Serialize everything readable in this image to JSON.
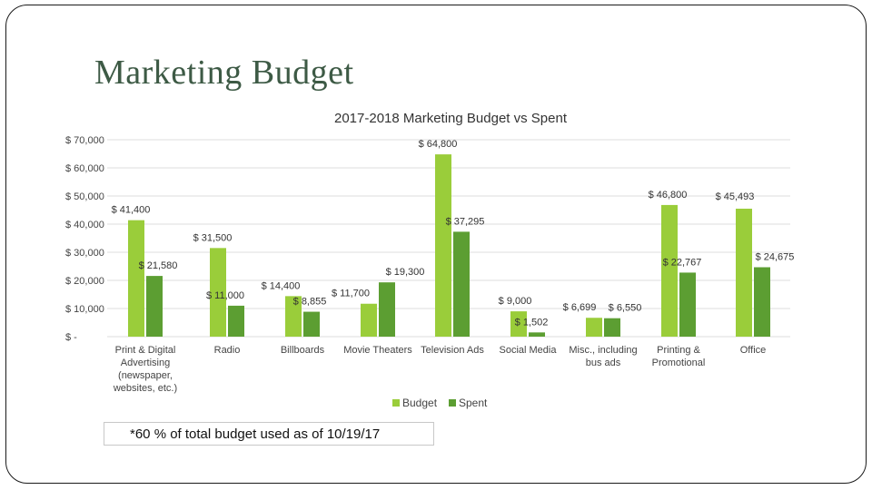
{
  "slide": {
    "title": "Marketing Budget",
    "footnote": "*60 % of total budget used as of 10/19/17"
  },
  "colors": {
    "budget": "#9acd3a",
    "spent": "#5c9e32",
    "grid": "#dcdcdc",
    "text": "#444444"
  },
  "chart_data": {
    "type": "bar",
    "title": "2017-2018 Marketing Budget vs Spent",
    "xlabel": "",
    "ylabel": "",
    "ylim": [
      0,
      70000
    ],
    "yticks": [
      0,
      10000,
      20000,
      30000,
      40000,
      50000,
      60000,
      70000
    ],
    "ytick_labels": [
      "$ -",
      "$ 10,000",
      "$ 20,000",
      "$ 30,000",
      "$ 40,000",
      "$ 50,000",
      "$ 60,000",
      "$ 70,000"
    ],
    "grid": true,
    "legend": "bottom",
    "categories": [
      [
        "Print & Digital",
        "Advertising",
        "(newspaper,",
        "websites, etc.)"
      ],
      [
        "Radio"
      ],
      [
        "Billboards"
      ],
      [
        "Movie Theaters"
      ],
      [
        "Television Ads"
      ],
      [
        "Social Media"
      ],
      [
        "Misc., including",
        "bus ads"
      ],
      [
        "Printing &",
        "Promotional"
      ],
      [
        "Office"
      ]
    ],
    "series": [
      {
        "name": "Budget",
        "values": [
          41400,
          31500,
          14400,
          11700,
          64800,
          9000,
          6699,
          46800,
          45493
        ],
        "labels": [
          "$ 41,400",
          "$ 31,500",
          "$ 14,400",
          "$ 11,700",
          "$ 64,800",
          "$ 9,000",
          "$ 6,699",
          "$ 46,800",
          "$ 45,493"
        ]
      },
      {
        "name": "Spent",
        "values": [
          21580,
          11000,
          8855,
          19300,
          37295,
          1502,
          6550,
          22767,
          24675
        ],
        "labels": [
          "$ 21,580",
          "$ 11,000",
          "$ 8,855",
          "$ 19,300",
          "$ 37,295",
          "$ 1,502",
          "$ 6,550",
          "$ 22,767",
          "$ 24,675"
        ]
      }
    ]
  }
}
